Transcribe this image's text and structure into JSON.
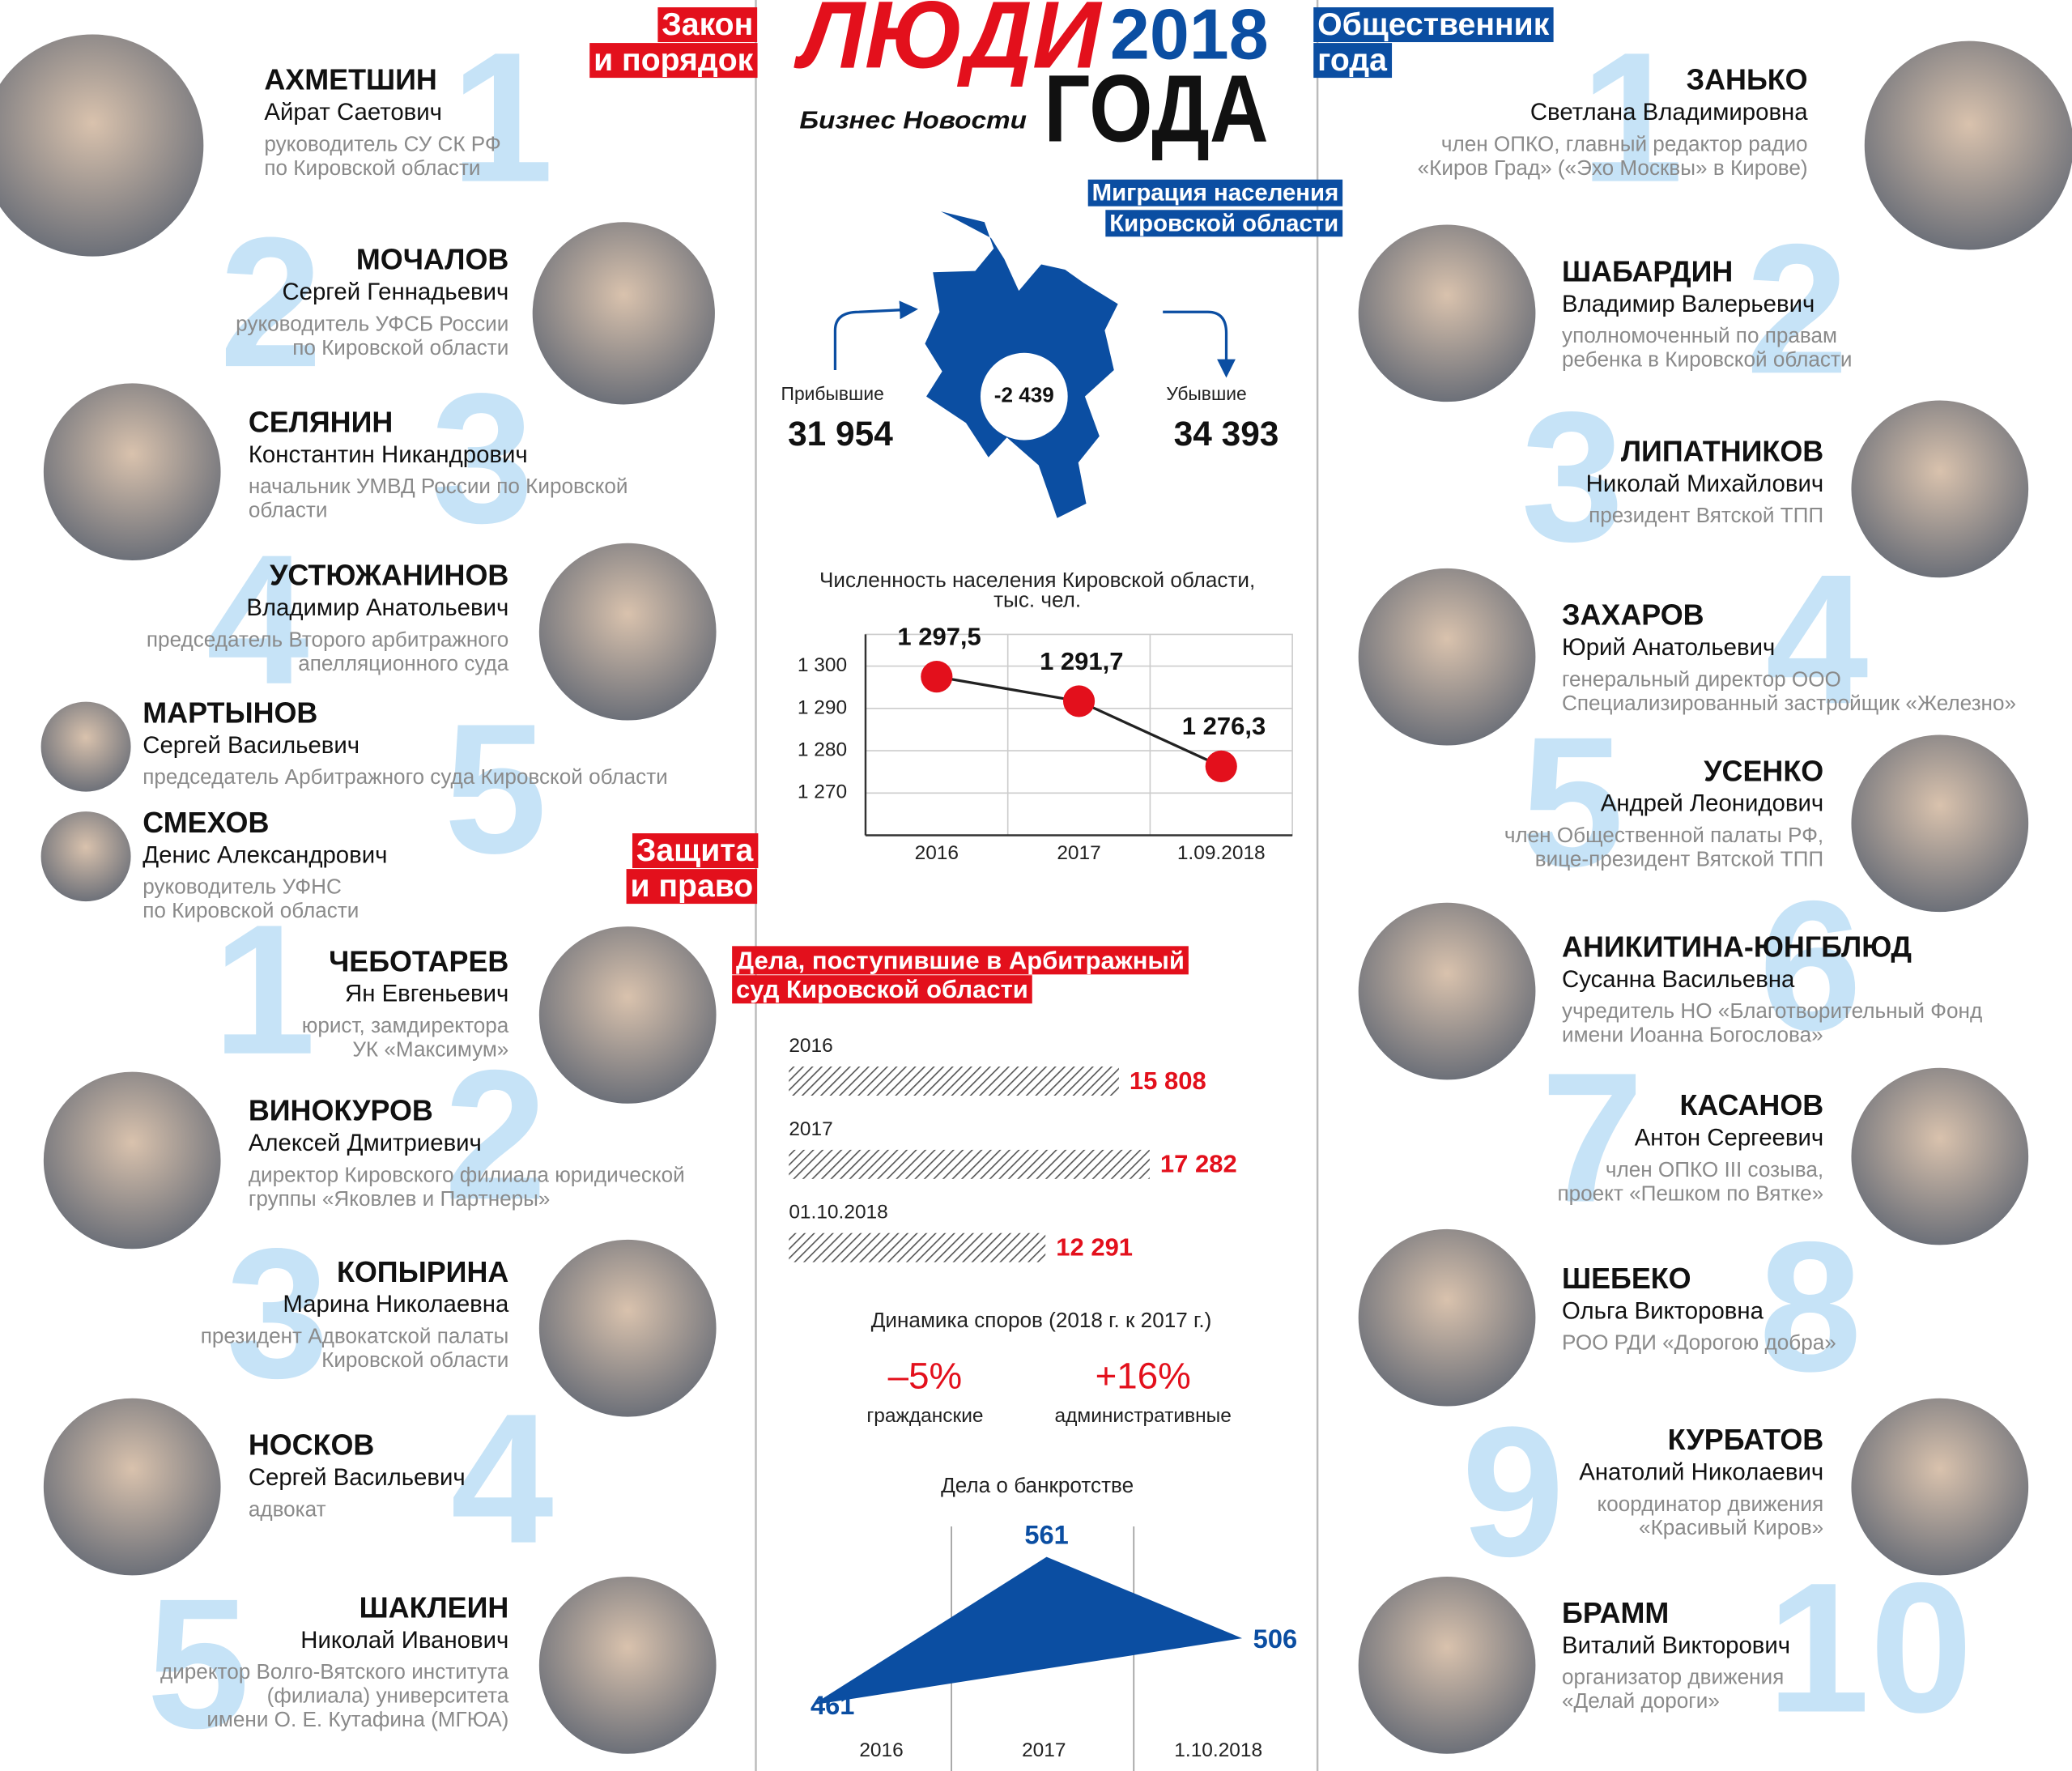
{
  "header": {
    "title": "ЛЮДИ",
    "year": "2018",
    "subtitle": "ГОДА",
    "publisher": "Бизнес Новости"
  },
  "sections": [
    {
      "title": [
        "Закон",
        "и порядок"
      ],
      "people": [
        {
          "rank": "1",
          "surname": "АХМЕТШИН",
          "name": "Айрат Саетович",
          "position": [
            "руководитель СУ СК РФ",
            "по Кировской области"
          ]
        },
        {
          "rank": "2",
          "surname": "МОЧАЛОВ",
          "name": "Сергей Геннадьевич",
          "position": [
            "руководитель УФСБ России",
            "по Кировской области"
          ]
        },
        {
          "rank": "3",
          "surname": "СЕЛЯНИН",
          "name": "Константин Никандрович",
          "position": [
            "начальник УМВД России по Кировской",
            "области"
          ]
        },
        {
          "rank": "4",
          "surname": "УСТЮЖАНИНОВ",
          "name": "Владимир Анатольевич",
          "position": [
            "председатель Второго арбитражного",
            "апелляционного суда"
          ]
        },
        {
          "rank": "5",
          "surname": "МАРТЫНОВ",
          "name": "Сергей Васильевич",
          "position": [
            "председатель Арбитражного суда Кировской области"
          ]
        },
        {
          "surname": "СМЕХОВ",
          "name": "Денис Александрович",
          "position": [
            "руководитель УФНС",
            "по Кировской области"
          ]
        }
      ]
    },
    {
      "title": [
        "Защита",
        "и право"
      ],
      "people": [
        {
          "rank": "1",
          "surname": "ЧЕБОТАРЕВ",
          "name": "Ян Евгеньевич",
          "position": [
            "юрист, замдиректора",
            "УК «Максимум»"
          ]
        },
        {
          "rank": "2",
          "surname": "ВИНОКУРОВ",
          "name": "Алексей Дмитриевич",
          "position": [
            "директор Кировского филиала юридической",
            "группы «Яковлев и Партнеры»"
          ]
        },
        {
          "rank": "3",
          "surname": "КОПЫРИНА",
          "name": "Марина Николаевна",
          "position": [
            "президент Адвокатской палаты",
            "Кировской области"
          ]
        },
        {
          "rank": "4",
          "surname": "НОСКОВ",
          "name": "Сергей Васильевич",
          "position": [
            "адвокат"
          ]
        },
        {
          "rank": "5",
          "surname": "ШАКЛЕИН",
          "name": "Николай Иванович",
          "position": [
            "директор Волго-Вятского института",
            "(филиала) университета",
            "имени О. Е. Кутафина (МГЮА)"
          ]
        }
      ]
    },
    {
      "title": [
        "Общественник",
        "года"
      ],
      "people": [
        {
          "rank": "1",
          "surname": "ЗАНЬКО",
          "name": "Светлана Владимировна",
          "position": [
            "член ОПКО, главный редактор радио",
            "«Киров Град» («Эхо Москвы» в Кирове)"
          ]
        },
        {
          "rank": "2",
          "surname": "ШАБАРДИН",
          "name": "Владимир Валерьевич",
          "position": [
            "уполномоченный по правам",
            "ребенка в Кировской области"
          ]
        },
        {
          "rank": "3",
          "surname": "ЛИПАТНИКОВ",
          "name": "Николай Михайлович",
          "position": [
            "президент Вятской ТПП"
          ]
        },
        {
          "rank": "4",
          "surname": "ЗАХАРОВ",
          "name": "Юрий Анатольевич",
          "position": [
            "генеральный директор ООО",
            "Специализированный застройщик «Железно»"
          ]
        },
        {
          "rank": "5",
          "surname": "УСЕНКО",
          "name": "Андрей Леонидович",
          "position": [
            "член Общественной палаты РФ,",
            "вице-президент Вятской ТПП"
          ]
        },
        {
          "rank": "6",
          "surname": "АНИКИТИНА-ЮНГБЛЮД",
          "name": "Сусанна Васильевна",
          "position": [
            "учредитель НО «Благотворительный Фонд",
            "имени Иоанна Богослова»"
          ]
        },
        {
          "rank": "7",
          "surname": "КАСАНОВ",
          "name": "Антон Сергеевич",
          "position": [
            "член ОПКО III созыва,",
            "проект «Пешком по Вятке»"
          ]
        },
        {
          "rank": "8",
          "surname": "ШЕБЕКО",
          "name": "Ольга Викторовна",
          "position": [
            "РОО РДИ «Дорогою добра»"
          ]
        },
        {
          "rank": "9",
          "surname": "КУРБАТОВ",
          "name": "Анатолий Николаевич",
          "position": [
            "координатор движения",
            "«Красивый Киров»"
          ]
        },
        {
          "rank": "10",
          "surname": "БРАММ",
          "name": "Виталий Викторович",
          "position": [
            "организатор движения",
            "«Делай дороги»"
          ]
        }
      ]
    }
  ],
  "migration": {
    "title": [
      "Миграция населения",
      "Кировской области"
    ],
    "arrived_label": "Прибывшие",
    "arrived": "31 954",
    "departed_label": "Убывшие",
    "departed": "34 393",
    "balance": "-2 439"
  },
  "disputes": {
    "title": "Динамика споров (2018 г. к 2017 г.)",
    "items": [
      {
        "change": "–5%",
        "label": "гражданские"
      },
      {
        "change": "+16%",
        "label": "административные"
      }
    ]
  },
  "chart_data": [
    {
      "type": "line",
      "title": [
        "Численность населения Кировской области,",
        "тыс. чел."
      ],
      "categories": [
        "2016",
        "2017",
        "1.09.2018"
      ],
      "values": [
        1297.5,
        1291.7,
        1276.3
      ],
      "value_labels": [
        "1 297,5",
        "1 291,7",
        "1 276,3"
      ],
      "color": "#e3101c",
      "ylim": [
        1260,
        1310
      ],
      "yticks": [
        {
          "value": 1300,
          "label": "1 300"
        },
        {
          "value": 1290,
          "label": "1 290"
        },
        {
          "value": 1280,
          "label": "1 280"
        },
        {
          "value": 1270,
          "label": "1 270"
        }
      ],
      "grid": true
    },
    {
      "type": "bar",
      "title": [
        "Дела, поступившие в Арбитражный",
        "суд Кировской области"
      ],
      "categories": [
        "2016",
        "2017",
        "01.10.2018"
      ],
      "values": [
        15808,
        17282,
        12291
      ],
      "value_labels": [
        "15 808",
        "17 282",
        "12 291"
      ],
      "color": "#e3101c"
    },
    {
      "type": "area",
      "title": "Дела о банкротстве",
      "categories": [
        "2016",
        "2017",
        "1.10.2018"
      ],
      "values": [
        461,
        561,
        506
      ],
      "color": "#0b4ea2"
    }
  ]
}
